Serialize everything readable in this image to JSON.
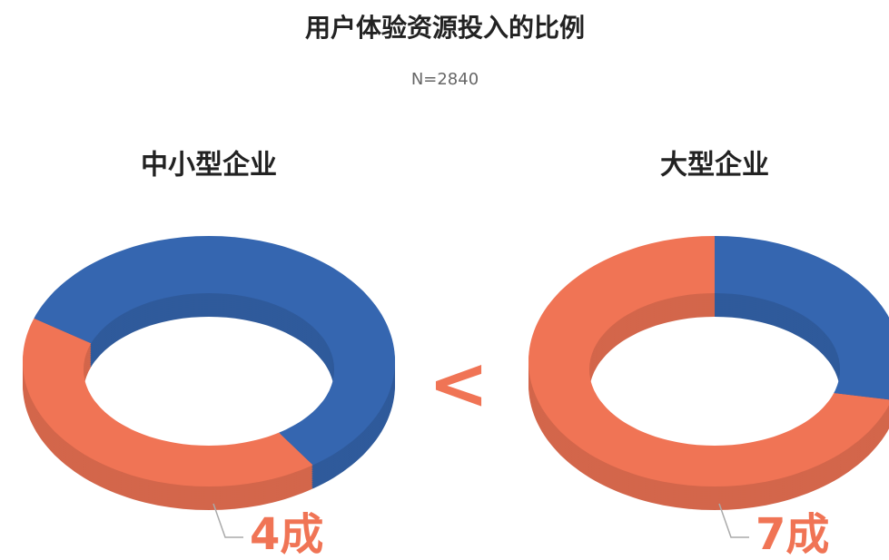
{
  "title": "用户体验资源投入的比例",
  "subtitle": "N=2840",
  "comparison": "<",
  "chart_data": [
    {
      "type": "pie",
      "title": "中小型企业",
      "values": [
        4,
        6
      ],
      "value_labels": [
        "4成",
        null
      ],
      "colors": [
        "#f07455",
        "#3566b0"
      ],
      "start_angle": 146
    },
    {
      "type": "pie",
      "title": "大型企业",
      "values": [
        7,
        3
      ],
      "value_labels": [
        "7成",
        null
      ],
      "colors": [
        "#f07455",
        "#3566b0"
      ],
      "start_angle": 108
    }
  ]
}
